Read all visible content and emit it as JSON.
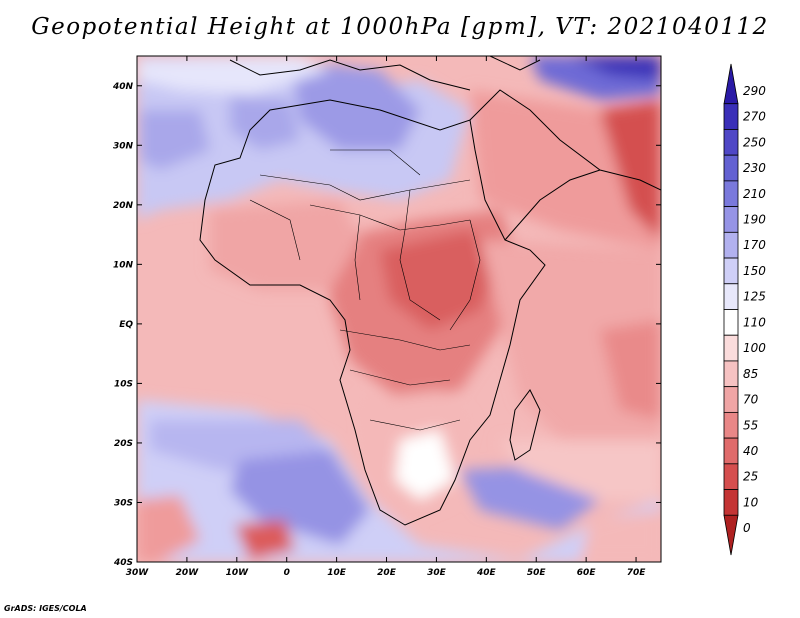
{
  "title": "Geopotential Height at 1000hPa [gpm], VT: 2021040112",
  "credit": "GrADS: IGES/COLA",
  "map": {
    "lon_range": [
      -30,
      75
    ],
    "lat_range": [
      -40,
      45
    ],
    "lat_ticks": [
      {
        "lat": 40,
        "label": "40N"
      },
      {
        "lat": 30,
        "label": "30N"
      },
      {
        "lat": 20,
        "label": "20N"
      },
      {
        "lat": 10,
        "label": "10N"
      },
      {
        "lat": 0,
        "label": "EQ"
      },
      {
        "lat": -10,
        "label": "10S"
      },
      {
        "lat": -20,
        "label": "20S"
      },
      {
        "lat": -30,
        "label": "30S"
      },
      {
        "lat": -40,
        "label": "40S"
      }
    ],
    "lon_ticks": [
      {
        "lon": -30,
        "label": "30W"
      },
      {
        "lon": -20,
        "label": "20W"
      },
      {
        "lon": -10,
        "label": "10W"
      },
      {
        "lon": 0,
        "label": "0"
      },
      {
        "lon": 10,
        "label": "10E"
      },
      {
        "lon": 20,
        "label": "20E"
      },
      {
        "lon": 30,
        "label": "30E"
      },
      {
        "lon": 40,
        "label": "40E"
      },
      {
        "lon": 50,
        "label": "50E"
      },
      {
        "lon": 60,
        "label": "60E"
      },
      {
        "lon": 70,
        "label": "70E"
      }
    ]
  },
  "colorbar": {
    "levels": [
      "290",
      "270",
      "250",
      "230",
      "210",
      "190",
      "170",
      "150",
      "125",
      "110",
      "100",
      "85",
      "70",
      "55",
      "40",
      "25",
      "10",
      "0"
    ],
    "colors": [
      "#2a1aa6",
      "#3a2fb8",
      "#4f47c6",
      "#6361d2",
      "#7a79dc",
      "#9694e6",
      "#b2b1ef",
      "#cfcff7",
      "#e8e8fb",
      "#ffffff",
      "#fbdcdc",
      "#f6c2c2",
      "#f0a5a5",
      "#e98787",
      "#e06b6b",
      "#d54e4e",
      "#c43434",
      "#ae2020"
    ]
  }
}
